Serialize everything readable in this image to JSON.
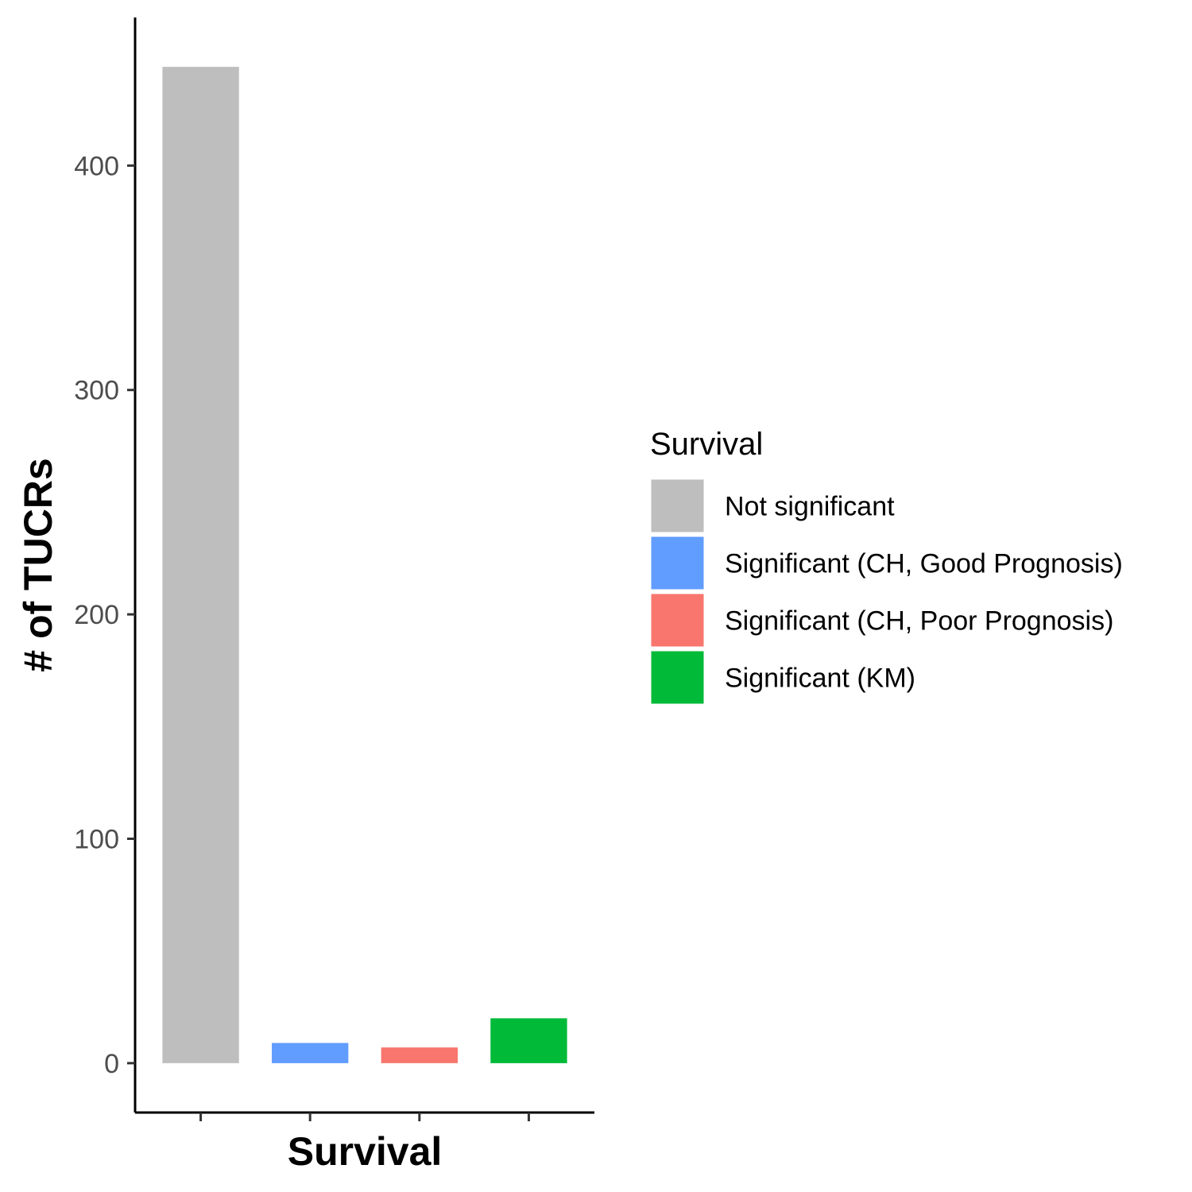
{
  "chart_data": {
    "type": "bar",
    "categories": [
      "Not significant",
      "Significant (CH, Good Prognosis)",
      "Significant (CH, Poor Prognosis)",
      "Significant (KM)"
    ],
    "values": [
      444,
      9,
      7,
      20
    ],
    "colors": [
      "#BEBEBE",
      "#619CFF",
      "#F8766D",
      "#00BA38"
    ],
    "title": "",
    "xlabel": "Survival",
    "ylabel": "# of TUCRs",
    "ylim": [
      -22,
      466
    ],
    "yticks": [
      0,
      100,
      200,
      300,
      400
    ],
    "x_tick_labels": false,
    "grid": false,
    "legend": {
      "title": "Survival",
      "placement": "right",
      "items": [
        {
          "label": "Not significant",
          "color": "#BEBEBE"
        },
        {
          "label": "Significant (CH, Good Prognosis)",
          "color": "#619CFF"
        },
        {
          "label": "Significant (CH, Poor Prognosis)",
          "color": "#F8766D"
        },
        {
          "label": "Significant (KM)",
          "color": "#00BA38"
        }
      ]
    }
  }
}
